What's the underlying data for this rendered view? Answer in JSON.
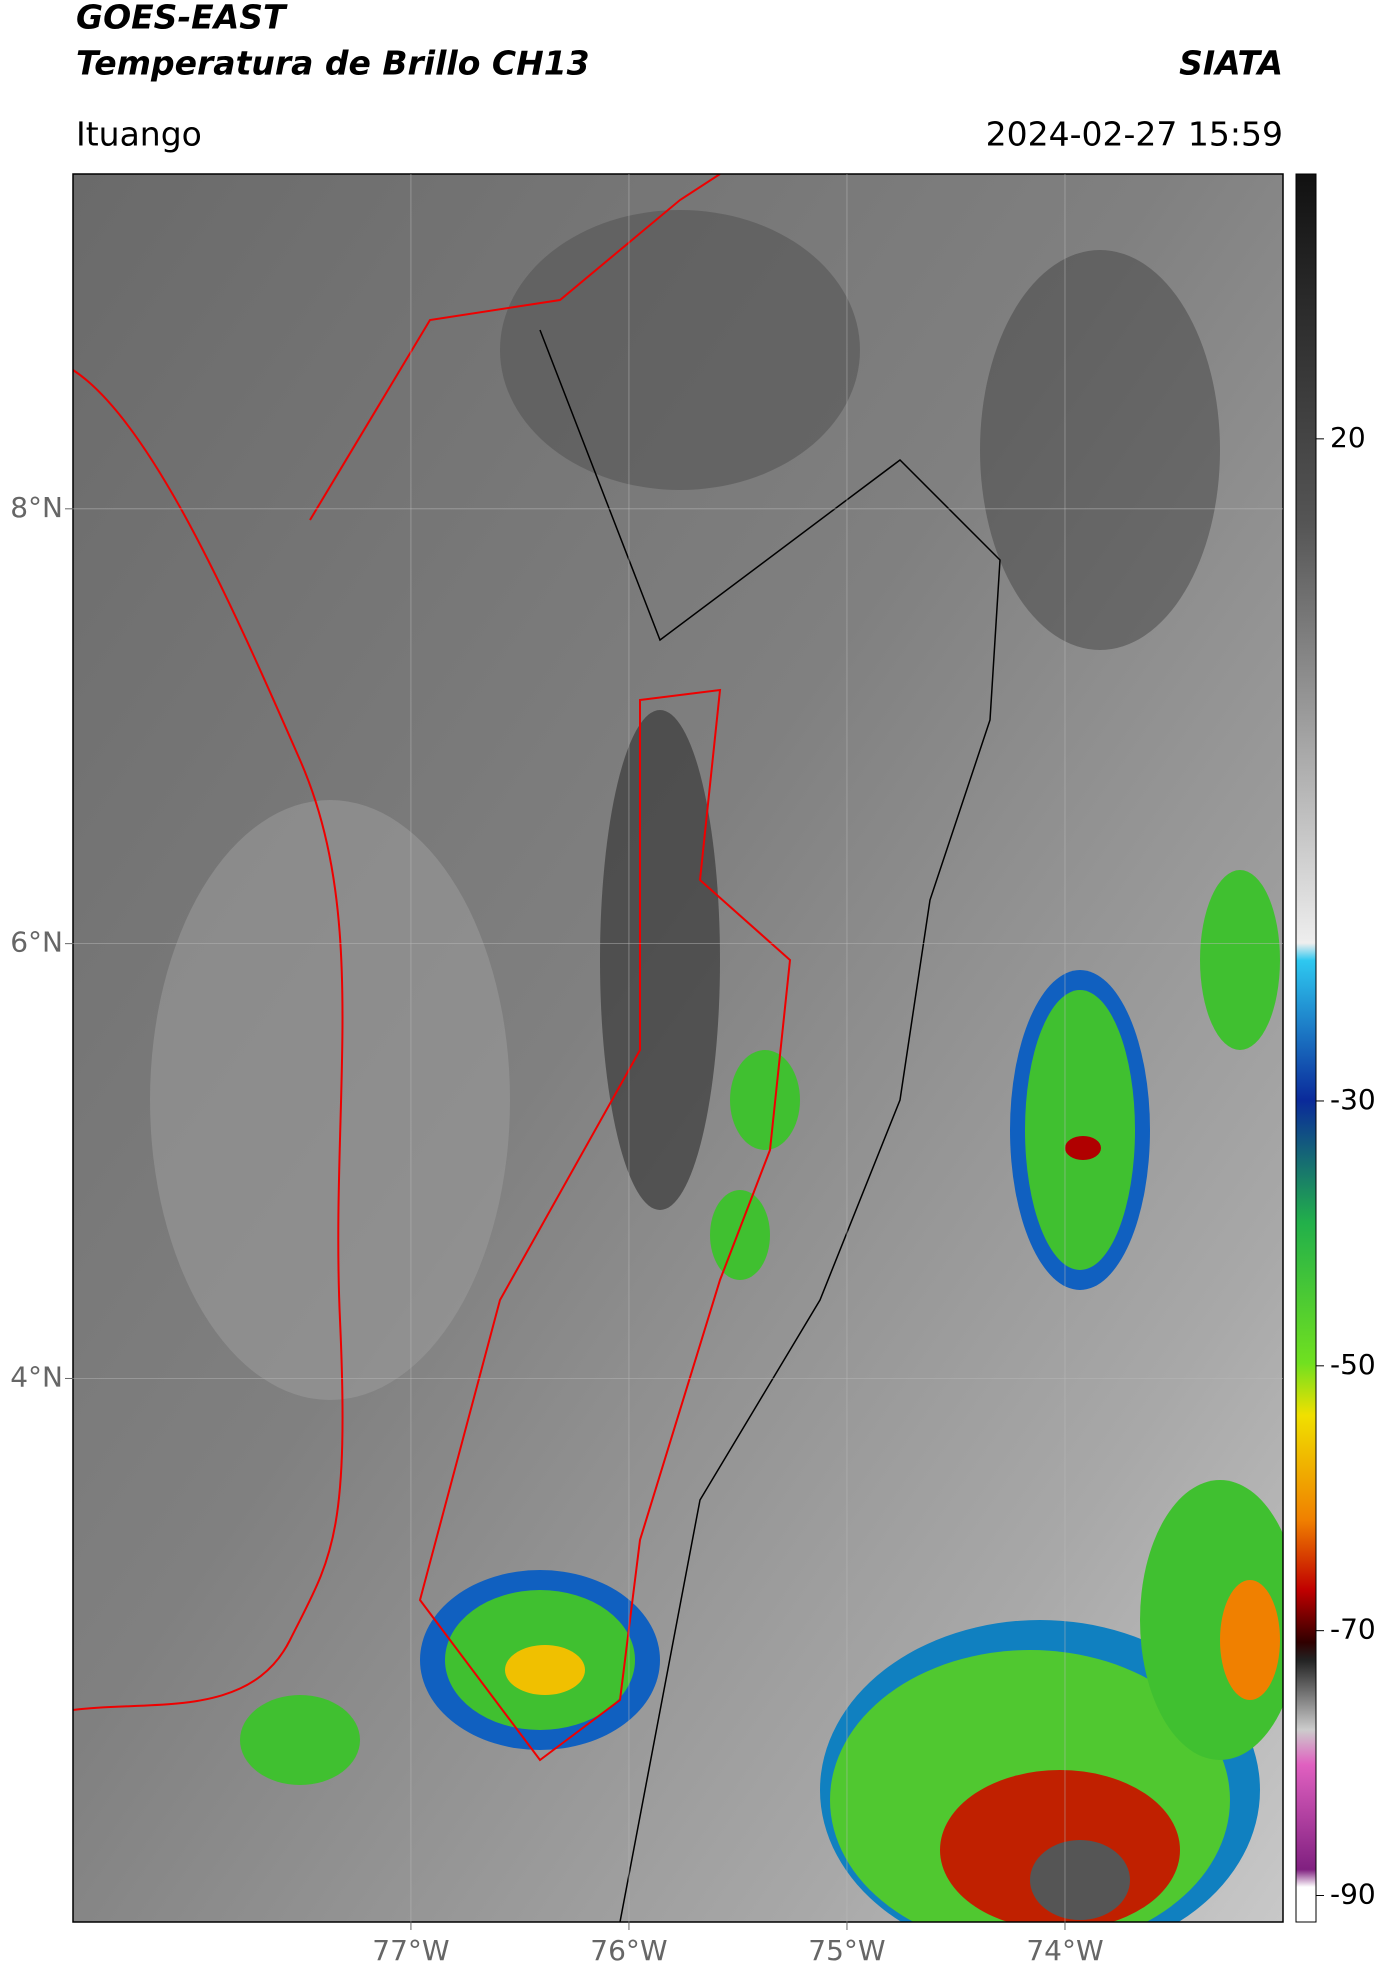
{
  "header": {
    "title_lines": [
      "GOES-EAST",
      "Temperatura de Brillo CH13"
    ],
    "organization": "SIATA",
    "location": "Ituango",
    "datetime": "2024-02-27 15:59"
  },
  "map": {
    "latlim": [
      1.5,
      9.54
    ],
    "lonlim": [
      -78.55,
      -73.0
    ],
    "lat_ticks": [
      {
        "value": 8,
        "label": "8°N"
      },
      {
        "value": 6,
        "label": "6°N"
      },
      {
        "value": 4,
        "label": "4°N"
      }
    ],
    "lon_ticks": [
      {
        "value": -77,
        "label": "77°W"
      },
      {
        "value": -76,
        "label": "76°W"
      },
      {
        "value": -75,
        "label": "75°W"
      },
      {
        "value": -74,
        "label": "74°W"
      }
    ],
    "grid": true
  },
  "colorbar": {
    "clim": [
      -92,
      40
    ],
    "ticks": [
      20,
      -30,
      -50,
      -70,
      -90
    ]
  }
}
